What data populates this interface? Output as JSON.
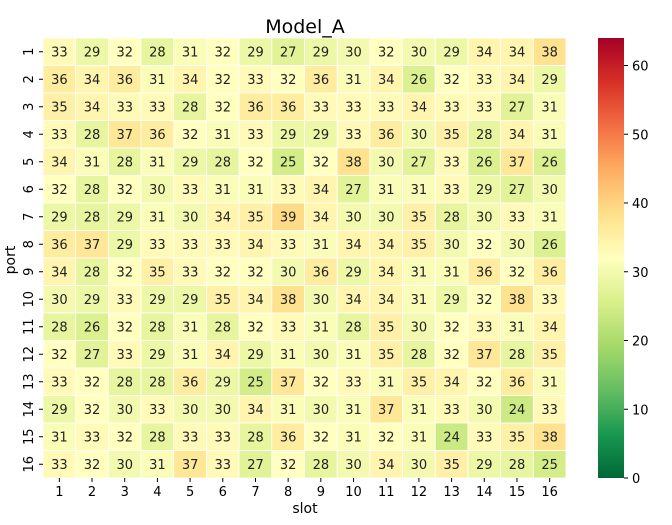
{
  "chart_data": {
    "type": "heatmap",
    "title": "Model_A",
    "xlabel": "slot",
    "ylabel": "port",
    "x_categories": [
      "1",
      "2",
      "3",
      "4",
      "5",
      "6",
      "7",
      "8",
      "9",
      "10",
      "11",
      "12",
      "13",
      "14",
      "15",
      "16"
    ],
    "y_categories": [
      "1",
      "2",
      "3",
      "4",
      "5",
      "6",
      "7",
      "8",
      "9",
      "10",
      "11",
      "12",
      "13",
      "14",
      "15",
      "16"
    ],
    "values": [
      [
        33,
        29,
        32,
        28,
        31,
        32,
        29,
        27,
        29,
        30,
        32,
        30,
        29,
        34,
        34,
        38
      ],
      [
        36,
        34,
        36,
        31,
        34,
        32,
        33,
        32,
        36,
        31,
        34,
        26,
        32,
        33,
        34,
        29
      ],
      [
        35,
        34,
        33,
        33,
        28,
        32,
        36,
        36,
        33,
        33,
        33,
        34,
        33,
        33,
        27,
        31
      ],
      [
        33,
        28,
        37,
        36,
        32,
        31,
        33,
        29,
        29,
        33,
        36,
        30,
        35,
        28,
        34,
        31
      ],
      [
        34,
        31,
        28,
        31,
        29,
        28,
        32,
        25,
        32,
        38,
        30,
        27,
        33,
        26,
        37,
        26
      ],
      [
        32,
        28,
        32,
        30,
        33,
        31,
        31,
        33,
        34,
        27,
        31,
        31,
        33,
        29,
        27,
        30
      ],
      [
        29,
        28,
        29,
        31,
        30,
        34,
        35,
        39,
        34,
        30,
        30,
        35,
        28,
        30,
        33,
        31
      ],
      [
        36,
        37,
        29,
        33,
        33,
        33,
        34,
        33,
        31,
        34,
        34,
        35,
        30,
        32,
        30,
        26
      ],
      [
        34,
        28,
        32,
        35,
        33,
        32,
        32,
        30,
        36,
        29,
        34,
        31,
        31,
        36,
        32,
        36
      ],
      [
        30,
        29,
        33,
        29,
        29,
        35,
        34,
        38,
        30,
        34,
        34,
        31,
        29,
        32,
        38,
        33
      ],
      [
        28,
        26,
        32,
        28,
        31,
        28,
        32,
        33,
        31,
        28,
        35,
        30,
        32,
        33,
        31,
        34
      ],
      [
        32,
        27,
        33,
        29,
        31,
        34,
        29,
        31,
        30,
        31,
        35,
        28,
        32,
        37,
        28,
        35
      ],
      [
        33,
        32,
        28,
        28,
        36,
        29,
        25,
        37,
        32,
        33,
        31,
        35,
        34,
        32,
        36,
        31
      ],
      [
        29,
        32,
        30,
        33,
        30,
        30,
        34,
        31,
        30,
        31,
        37,
        31,
        33,
        30,
        24,
        33
      ],
      [
        31,
        33,
        32,
        28,
        33,
        33,
        28,
        36,
        32,
        31,
        32,
        31,
        24,
        33,
        35,
        38
      ],
      [
        33,
        32,
        30,
        31,
        37,
        33,
        27,
        32,
        28,
        30,
        34,
        30,
        35,
        29,
        28,
        25
      ]
    ],
    "colorbar": {
      "min": 0,
      "max": 64,
      "ticks": [
        0,
        10,
        20,
        30,
        40,
        50,
        60
      ],
      "colormap": "RdYlGn_r"
    },
    "grid": false,
    "legend": "colorbar-right"
  }
}
